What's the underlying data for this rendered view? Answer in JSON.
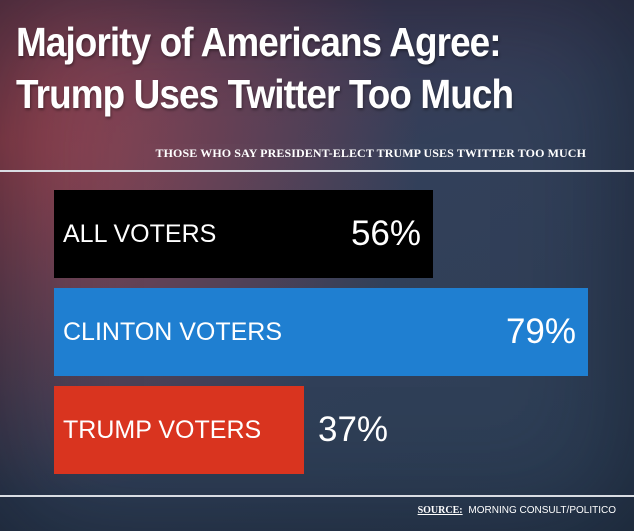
{
  "title_line1": "Majority of Americans Agree:",
  "title_line2": "Trump Uses Twitter Too Much",
  "source_key": "SOURCE:",
  "source_text": "MORNING CONSULT/POLITICO",
  "chart_data": {
    "type": "bar",
    "orientation": "horizontal",
    "subtitle": "THOSE WHO SAY PRESIDENT-ELECT TRUMP USES TWITTER TOO MUCH",
    "categories": [
      "ALL VOTERS",
      "CLINTON VOTERS",
      "TRUMP VOTERS"
    ],
    "values": [
      56,
      79,
      37
    ],
    "value_labels": [
      "56%",
      "79%",
      "37%"
    ],
    "bar_colors": [
      "#000000",
      "#1f7fd1",
      "#d9341f"
    ],
    "xlim": [
      0,
      100
    ],
    "grid": false,
    "legend": "none"
  }
}
